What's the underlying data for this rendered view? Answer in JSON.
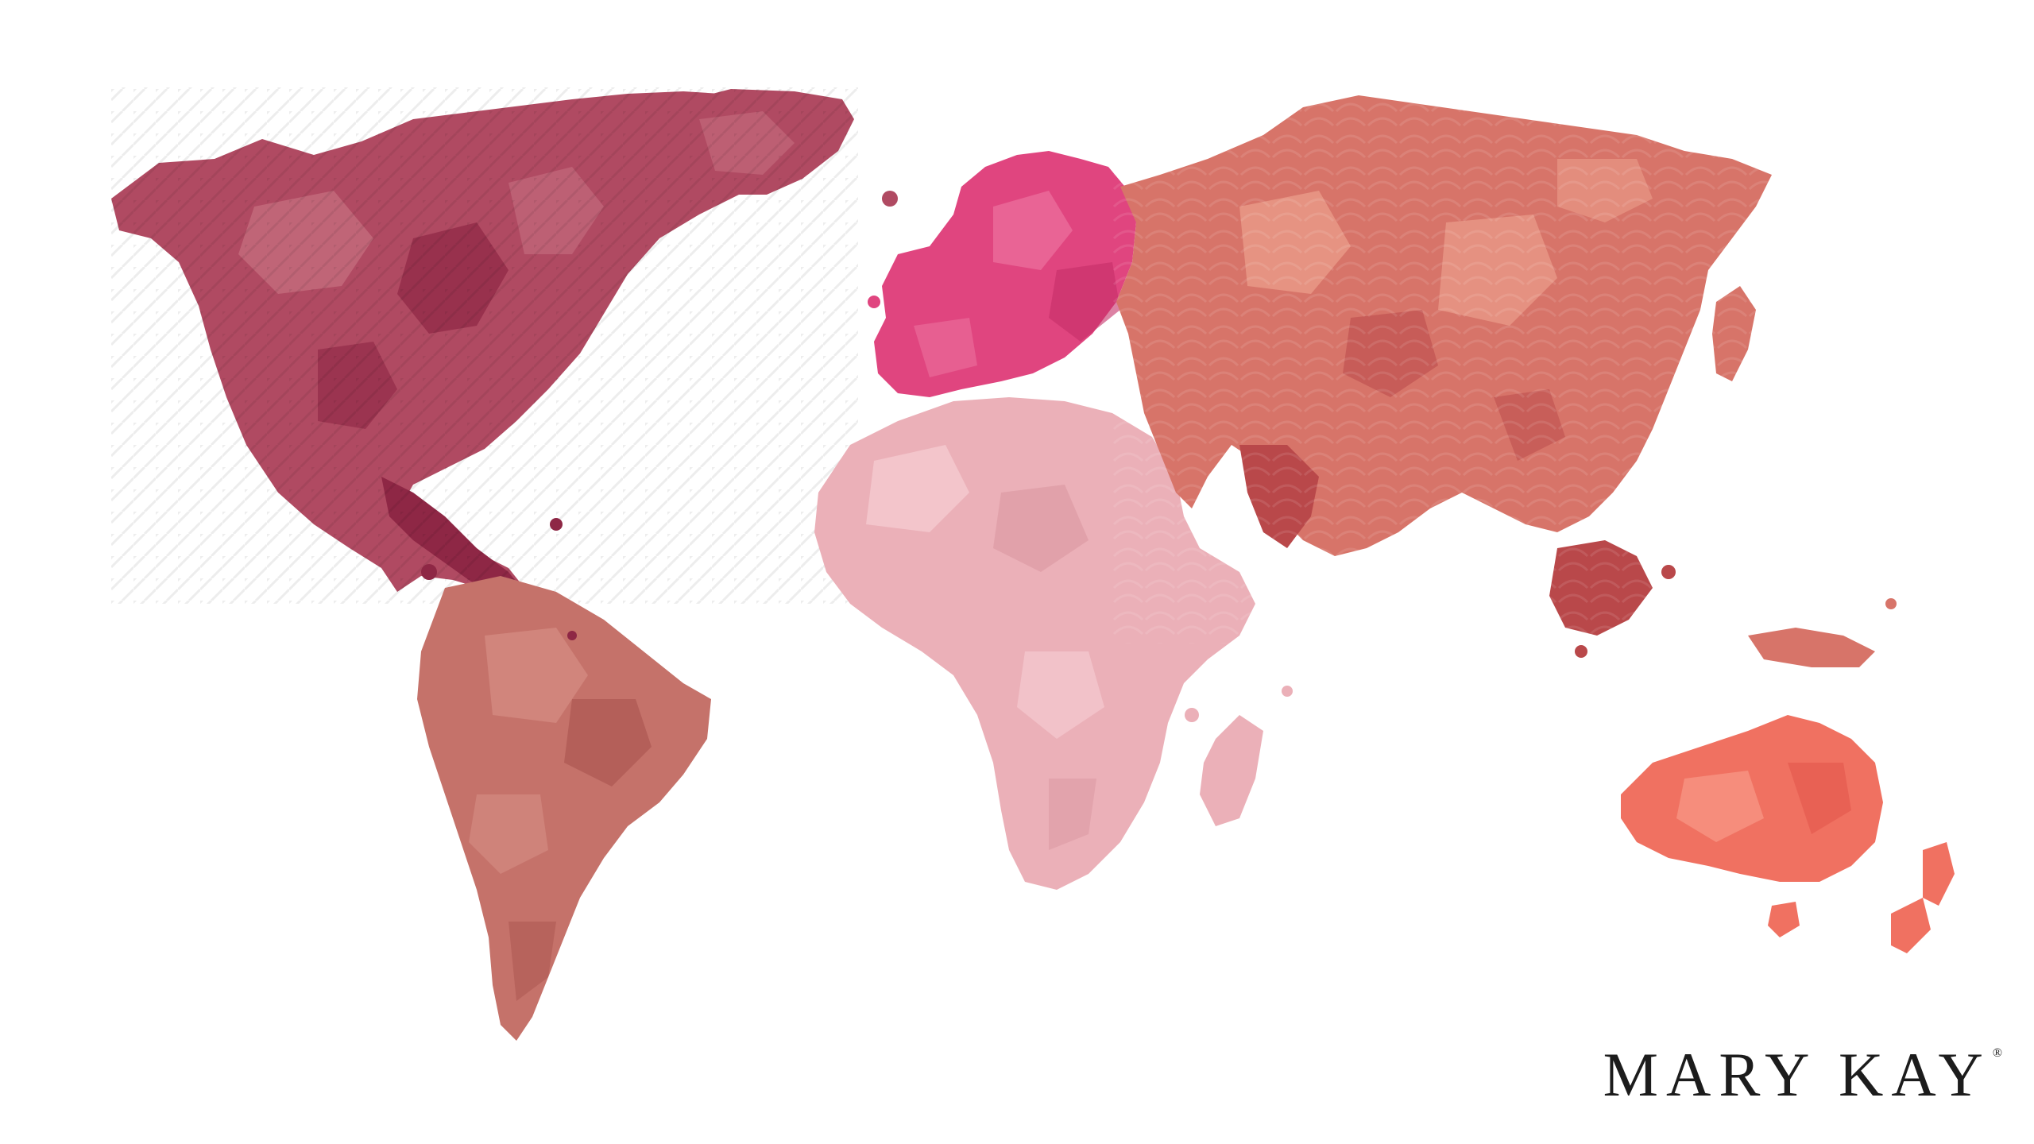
{
  "brand": {
    "name": "MARY KAY",
    "trademark": "®"
  },
  "continents": [
    {
      "name": "north-america",
      "color": "#b04a62",
      "shade": "#8e2745",
      "highlight": "#c97383"
    },
    {
      "name": "south-america",
      "color": "#c5726a",
      "shade": "#a9544e",
      "highlight": "#d99389"
    },
    {
      "name": "europe",
      "color": "#e0457f",
      "shade": "#c42f67",
      "highlight": "#ee79a3"
    },
    {
      "name": "africa",
      "color": "#ebb0b8",
      "shade": "#d9959f",
      "highlight": "#f5cbd0"
    },
    {
      "name": "asia",
      "color": "#d77469",
      "shade": "#b9484a",
      "highlight": "#eb9e8b"
    },
    {
      "name": "australia",
      "color": "#f07161",
      "shade": "#e2544a",
      "highlight": "#f89a87"
    }
  ]
}
